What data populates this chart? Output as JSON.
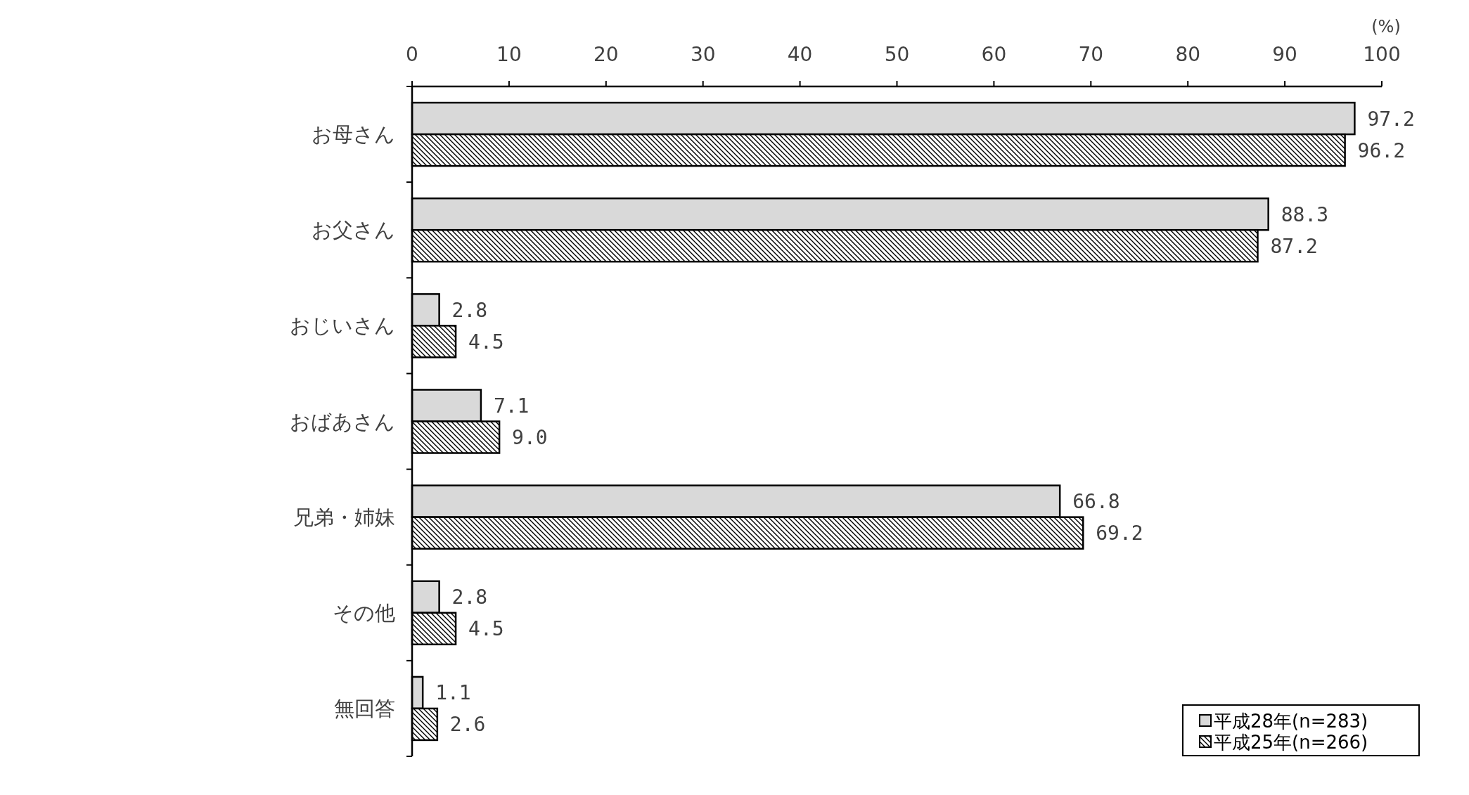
{
  "chart_data": {
    "type": "bar",
    "orientation": "horizontal",
    "xlabel": "(%)",
    "categories": [
      "お母さん",
      "お父さん",
      "おじいさん",
      "おばあさん",
      "兄弟・姉妹",
      "その他",
      "無回答"
    ],
    "series": [
      {
        "name": "平成28年(n=283)",
        "color": "#d9d9d9",
        "values": [
          97.2,
          88.3,
          2.8,
          7.1,
          66.8,
          2.8,
          1.1
        ],
        "value_labels": [
          "97.2",
          "88.3",
          "2.8",
          "7.1",
          "66.8",
          "2.8",
          "1.1"
        ]
      },
      {
        "name": "平成25年(n=266)",
        "color": "#000000",
        "values": [
          96.2,
          87.2,
          4.5,
          9.0,
          69.2,
          4.5,
          2.6
        ],
        "value_labels": [
          "96.2",
          "87.2",
          "4.5",
          "9.0",
          "69.2",
          "4.5",
          "2.6"
        ]
      }
    ],
    "xlim": [
      0,
      100
    ],
    "xticks": [
      0,
      10,
      20,
      30,
      40,
      50,
      60,
      70,
      80,
      90,
      100
    ],
    "legend": "bottom right",
    "grid": false
  }
}
